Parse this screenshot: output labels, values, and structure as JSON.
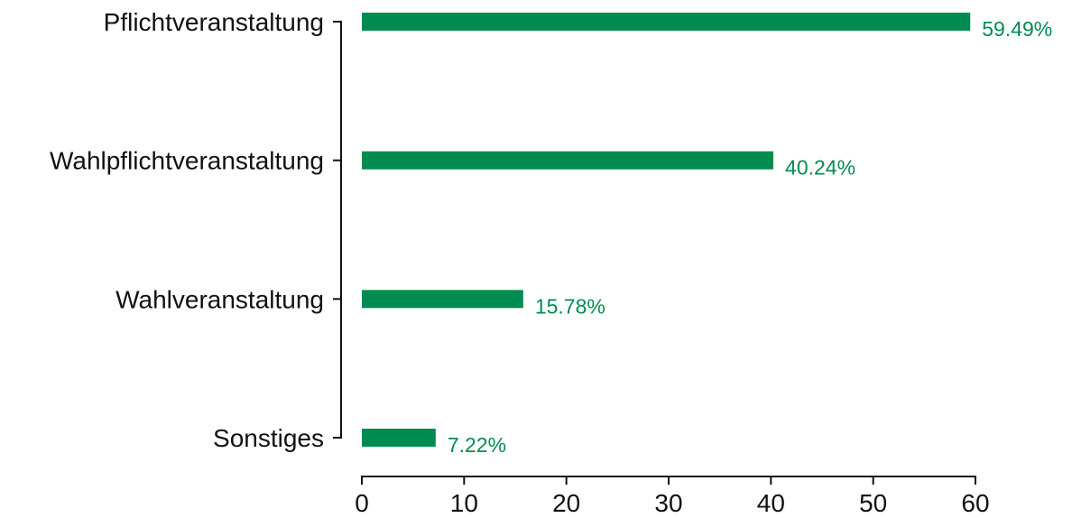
{
  "chart_data": {
    "type": "bar",
    "orientation": "horizontal",
    "title": "",
    "xlabel": "",
    "ylabel": "",
    "categories": [
      "Pflichtveranstaltung",
      "Wahlpflichtveranstaltung",
      "Wahlveranstaltung",
      "Sonstiges"
    ],
    "values": [
      59.49,
      40.24,
      15.78,
      7.22
    ],
    "data_labels": [
      "59.49%",
      "40.24%",
      "15.78%",
      "7.22%"
    ],
    "xlim": [
      0,
      60
    ],
    "xticks": [
      0,
      10,
      20,
      30,
      40,
      50,
      60
    ],
    "grid": false,
    "legend": "none",
    "colors": {
      "bar": "#008c50",
      "label": "#008c50",
      "axis": "#111111"
    }
  }
}
